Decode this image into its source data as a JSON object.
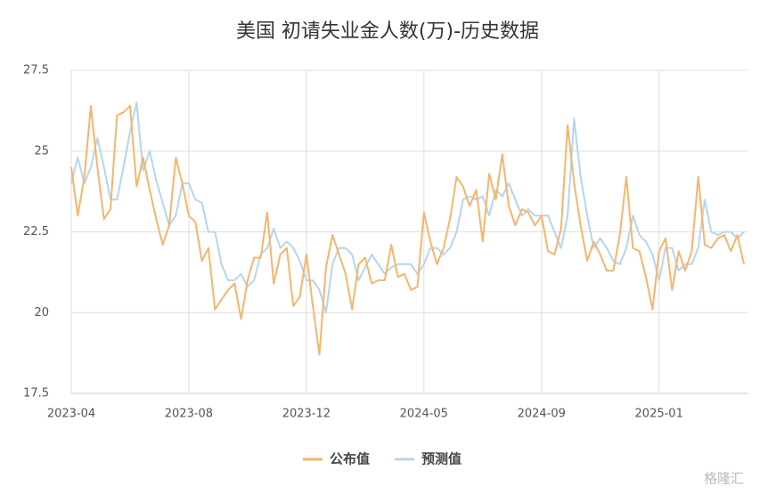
{
  "chart_data": {
    "type": "line",
    "title": "美国 初请失业金人数(万)-历史数据",
    "categories": [
      "2023-04",
      null,
      null,
      null,
      null,
      null,
      null,
      null,
      null,
      null,
      null,
      null,
      null,
      null,
      null,
      null,
      null,
      null,
      "2023-08",
      null,
      null,
      null,
      null,
      null,
      null,
      null,
      null,
      null,
      null,
      null,
      null,
      null,
      null,
      null,
      null,
      null,
      "2023-12",
      null,
      null,
      null,
      null,
      null,
      null,
      null,
      null,
      null,
      null,
      null,
      null,
      null,
      null,
      null,
      null,
      null,
      "2024-05",
      null,
      null,
      null,
      null,
      null,
      null,
      null,
      null,
      null,
      null,
      null,
      null,
      null,
      null,
      null,
      null,
      null,
      "2024-09",
      null,
      null,
      null,
      null,
      null,
      null,
      null,
      null,
      null,
      null,
      null,
      null,
      null,
      null,
      null,
      null,
      null,
      "2025-01",
      null,
      null,
      null,
      null,
      null,
      null,
      null,
      null,
      null,
      null,
      null,
      null,
      null
    ],
    "series": [
      {
        "name": "公布值",
        "color": "#f5b56b",
        "values": [
          24.5,
          23.0,
          24.2,
          26.4,
          24.5,
          22.9,
          23.2,
          26.1,
          26.2,
          26.4,
          23.9,
          24.8,
          23.8,
          22.9,
          22.1,
          22.7,
          24.8,
          24.0,
          23.0,
          22.8,
          21.6,
          22.0,
          20.1,
          20.4,
          20.7,
          20.9,
          19.8,
          21.0,
          21.7,
          21.7,
          23.1,
          20.9,
          21.8,
          22.0,
          20.2,
          20.5,
          21.8,
          20.2,
          18.7,
          21.4,
          22.4,
          21.8,
          21.2,
          20.1,
          21.5,
          21.7,
          20.9,
          21.0,
          21.0,
          22.1,
          21.1,
          21.2,
          20.7,
          20.8,
          23.1,
          22.2,
          21.5,
          22.0,
          22.9,
          24.2,
          23.9,
          23.3,
          23.8,
          22.2,
          24.3,
          23.5,
          24.9,
          23.3,
          22.7,
          23.2,
          23.1,
          22.7,
          23.0,
          21.9,
          21.8,
          22.6,
          25.8,
          24.0,
          22.7,
          21.6,
          22.2,
          21.8,
          21.3,
          21.3,
          22.4,
          24.2,
          22.0,
          21.9,
          21.1,
          20.1,
          21.9,
          22.3,
          20.7,
          21.9,
          21.3,
          21.9,
          24.2,
          22.1,
          22.0,
          22.3,
          22.4,
          21.9,
          22.4,
          21.5
        ]
      },
      {
        "name": "预测值",
        "color": "#b5d5ee",
        "values": [
          24.0,
          24.8,
          24.0,
          24.5,
          25.4,
          24.5,
          23.5,
          23.5,
          24.5,
          25.6,
          26.5,
          24.4,
          25.0,
          24.1,
          23.4,
          22.7,
          23.0,
          24.0,
          24.0,
          23.5,
          23.4,
          22.5,
          22.5,
          21.5,
          21.0,
          21.0,
          21.2,
          20.8,
          21.0,
          21.8,
          22.0,
          22.6,
          22.0,
          22.2,
          22.0,
          21.6,
          21.0,
          21.0,
          20.7,
          20.0,
          21.5,
          22.0,
          22.0,
          21.8,
          21.0,
          21.4,
          21.8,
          21.5,
          21.2,
          21.4,
          21.5,
          21.5,
          21.5,
          21.2,
          21.5,
          22.0,
          22.0,
          21.8,
          22.0,
          22.5,
          23.5,
          23.6,
          23.5,
          23.6,
          23.0,
          23.8,
          23.6,
          24.0,
          23.5,
          23.0,
          23.2,
          23.0,
          23.0,
          23.0,
          22.5,
          22.0,
          23.0,
          26.0,
          24.2,
          23.0,
          22.0,
          22.3,
          22.0,
          21.6,
          21.5,
          22.0,
          23.0,
          22.4,
          22.2,
          21.8,
          21.0,
          22.0,
          22.0,
          21.3,
          21.5,
          21.5,
          22.0,
          23.5,
          22.5,
          22.4,
          22.5,
          22.5,
          22.3,
          22.5
        ]
      }
    ],
    "ylim": [
      17.5,
      27.5
    ],
    "yticks": [
      17.5,
      20,
      22.5,
      25,
      27.5
    ],
    "grid": true,
    "legend": "bottom",
    "watermark": "格隆汇"
  }
}
